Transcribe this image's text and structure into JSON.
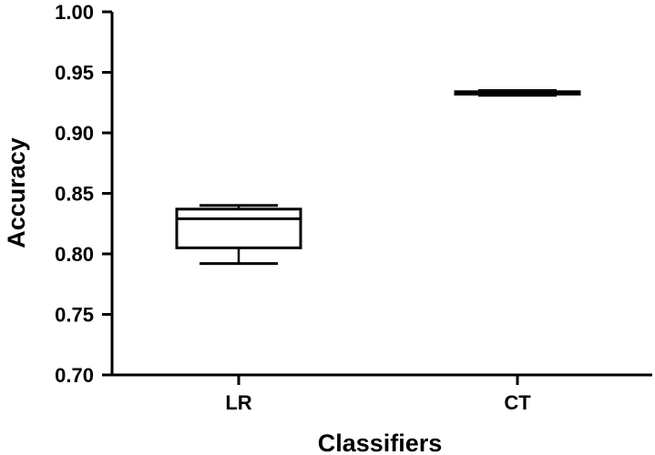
{
  "chart_data": {
    "type": "box",
    "title": "",
    "xlabel": "Classifiers",
    "ylabel": "Accuracy",
    "ylim": [
      0.7,
      1.0
    ],
    "yticks": [
      "0.70",
      "0.75",
      "0.80",
      "0.85",
      "0.90",
      "0.95",
      "1.00"
    ],
    "categories": [
      "LR",
      "CT"
    ],
    "boxes": [
      {
        "category": "LR",
        "min": 0.792,
        "q1": 0.805,
        "median": 0.829,
        "q3": 0.837,
        "max": 0.84
      },
      {
        "category": "CT",
        "min": 0.931,
        "q1": 0.932,
        "median": 0.933,
        "q3": 0.934,
        "max": 0.935
      }
    ],
    "grid": false,
    "colors": {
      "stroke": "#000000",
      "background": "#ffffff"
    }
  }
}
